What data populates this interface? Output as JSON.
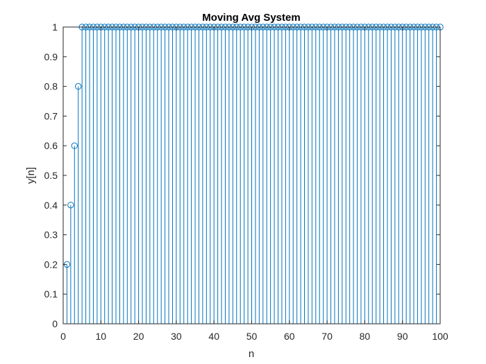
{
  "chart_data": {
    "type": "stem",
    "title": "Moving Avg System",
    "xlabel": "n",
    "ylabel": "y[n]",
    "xlim": [
      0,
      100
    ],
    "ylim": [
      0,
      1
    ],
    "xticks": [
      0,
      10,
      20,
      30,
      40,
      50,
      60,
      70,
      80,
      90,
      100
    ],
    "yticks": [
      0,
      0.1,
      0.2,
      0.3,
      0.4,
      0.5,
      0.6,
      0.7,
      0.8,
      0.9,
      1
    ],
    "ytick_labels": [
      "0",
      "0.1",
      "0.2",
      "0.3",
      "0.4",
      "0.5",
      "0.6",
      "0.7",
      "0.8",
      "0.9",
      "1"
    ],
    "series": [
      {
        "n_start": 1,
        "n_end": 100,
        "values": [
          0.2,
          0.4,
          0.6,
          0.8,
          1,
          1,
          1,
          1,
          1,
          1,
          1,
          1,
          1,
          1,
          1,
          1,
          1,
          1,
          1,
          1,
          1,
          1,
          1,
          1,
          1,
          1,
          1,
          1,
          1,
          1,
          1,
          1,
          1,
          1,
          1,
          1,
          1,
          1,
          1,
          1,
          1,
          1,
          1,
          1,
          1,
          1,
          1,
          1,
          1,
          1,
          1,
          1,
          1,
          1,
          1,
          1,
          1,
          1,
          1,
          1,
          1,
          1,
          1,
          1,
          1,
          1,
          1,
          1,
          1,
          1,
          1,
          1,
          1,
          1,
          1,
          1,
          1,
          1,
          1,
          1,
          1,
          1,
          1,
          1,
          1,
          1,
          1,
          1,
          1,
          1,
          1,
          1,
          1,
          1,
          1,
          1,
          1,
          1,
          1,
          1
        ],
        "color": "#0072bd",
        "marker": "circle-open"
      }
    ],
    "grid": false,
    "box": true,
    "axis_color": "#262626"
  }
}
